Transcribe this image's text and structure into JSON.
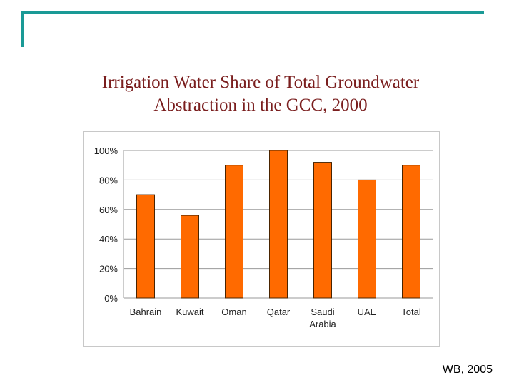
{
  "slide": {
    "title_line1": "Irrigation Water Share of Total Groundwater",
    "title_line2": "Abstraction in the GCC, 2000",
    "source": "WB, 2005"
  },
  "colors": {
    "accent_frame": "#1a9a96",
    "title": "#7a1e1e",
    "bar_fill": "#ff6a00",
    "bar_stroke": "#4a2400",
    "grid": "#9a9a9a"
  },
  "chart_data": {
    "type": "bar",
    "title": "",
    "xlabel": "",
    "ylabel": "",
    "categories": [
      "Bahrain",
      "Kuwait",
      "Oman",
      "Qatar",
      "Saudi Arabia",
      "UAE",
      "Total"
    ],
    "category_label_lines": [
      [
        "Bahrain"
      ],
      [
        "Kuwait"
      ],
      [
        "Oman"
      ],
      [
        "Qatar"
      ],
      [
        "Saudi",
        "Arabia"
      ],
      [
        "UAE"
      ],
      [
        "Total"
      ]
    ],
    "values": [
      70,
      56,
      90,
      100,
      92,
      80,
      90
    ],
    "ylim": [
      0,
      100
    ],
    "yticks": [
      0,
      20,
      40,
      60,
      80,
      100
    ],
    "ytick_labels": [
      "0%",
      "20%",
      "40%",
      "60%",
      "80%",
      "100%"
    ],
    "grid": true,
    "legend": "none"
  }
}
